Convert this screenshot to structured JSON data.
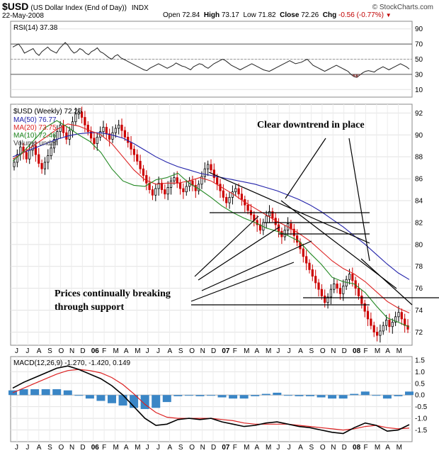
{
  "header": {
    "symbol": "$USD",
    "name": "(US Dollar Index (End of Day))",
    "exchange": "INDX",
    "date": "22-May-2008",
    "brand": "© StockCharts.com",
    "open_label": "Open",
    "open": "72.84",
    "high_label": "High",
    "high": "73.17",
    "low_label": "Low",
    "low": "71.82",
    "close_label": "Close",
    "close": "72.26",
    "chg_label": "Chg",
    "chg": "-0.56 (-0.77%)"
  },
  "colors": {
    "up": "#000000",
    "down": "#cc0000",
    "ma50": "#2222aa",
    "ma20": "#dd2222",
    "ma10": "#228822",
    "macd": "#000000",
    "signal": "#dd2222",
    "hist": "#3a86c6",
    "rsi": "#222222"
  },
  "chart_data": [
    {
      "type": "line",
      "panel": "rsi",
      "legend": "RSI(14) 37.38",
      "ylim": [
        0,
        100
      ],
      "y_ticks": [
        10,
        30,
        50,
        70,
        90
      ],
      "values": [
        66,
        68,
        70,
        65,
        58,
        60,
        62,
        64,
        58,
        55,
        60,
        63,
        66,
        62,
        60,
        58,
        64,
        68,
        72,
        68,
        62,
        58,
        60,
        64,
        62,
        58,
        56,
        60,
        62,
        65,
        60,
        58,
        55,
        52,
        50,
        54,
        56,
        52,
        50,
        48,
        46,
        44,
        42,
        40,
        38,
        36,
        35,
        38,
        40,
        42,
        44,
        42,
        40,
        38,
        40,
        42,
        45,
        43,
        41,
        40,
        38,
        36,
        40,
        42,
        44,
        43,
        40,
        38,
        41,
        44,
        46,
        48,
        50,
        48,
        45,
        42,
        40,
        38,
        36,
        38,
        40,
        42,
        44,
        42,
        40,
        38,
        36,
        35,
        34,
        36,
        38,
        40,
        42,
        44,
        46,
        48,
        46,
        44,
        45,
        46,
        48,
        50,
        46,
        42,
        40,
        38,
        36,
        34,
        36,
        38,
        40,
        42,
        40,
        38,
        36,
        34,
        30,
        27,
        26,
        29,
        32,
        34,
        35,
        34,
        33,
        36,
        38,
        40,
        38,
        36,
        38,
        40,
        42,
        44,
        42,
        40,
        37
      ]
    },
    {
      "type": "candlestick",
      "panel": "price",
      "title": "$USD (Weekly) 72.26",
      "legend": [
        "MA(50) 76.77",
        "MA(20) 73.75",
        "MA(10) 72.46",
        "Volume undef"
      ],
      "ylim": [
        70.8,
        92.8
      ],
      "y_ticks": [
        72,
        74,
        76,
        78,
        80,
        82,
        84,
        86,
        88,
        90,
        92
      ],
      "x_labels": [
        "J",
        "J",
        "A",
        "S",
        "O",
        "N",
        "D",
        "06",
        "F",
        "M",
        "A",
        "M",
        "J",
        "J",
        "A",
        "S",
        "O",
        "N",
        "D",
        "07",
        "F",
        "M",
        "A",
        "M",
        "J",
        "J",
        "A",
        "S",
        "O",
        "N",
        "D",
        "08",
        "F",
        "M",
        "A",
        "M"
      ],
      "closes": [
        87.5,
        88.2,
        88.9,
        88.4,
        87.8,
        88.6,
        89.0,
        88.2,
        87.4,
        86.9,
        87.5,
        88.1,
        88.8,
        89.6,
        90.3,
        90.9,
        90.2,
        89.6,
        90.4,
        91.2,
        91.9,
        92.1,
        91.6,
        90.9,
        90.3,
        89.7,
        89.2,
        89.8,
        90.3,
        90.7,
        90.1,
        89.6,
        90.2,
        90.6,
        90.9,
        90.4,
        89.8,
        89.3,
        88.7,
        88.2,
        87.6,
        86.9,
        86.3,
        85.6,
        85.0,
        84.5,
        85.1,
        85.6,
        85.0,
        84.6,
        85.2,
        85.8,
        86.1,
        85.6,
        85.1,
        84.8,
        85.3,
        85.8,
        85.4,
        84.9,
        85.5,
        86.2,
        86.9,
        87.3,
        86.8,
        86.1,
        85.5,
        84.9,
        84.3,
        83.8,
        84.3,
        84.8,
        85.1,
        84.6,
        84.1,
        83.6,
        83.1,
        82.7,
        82.2,
        81.8,
        81.3,
        82.0,
        82.6,
        83.0,
        82.4,
        81.8,
        81.2,
        80.7,
        81.3,
        81.9,
        81.4,
        80.8,
        80.2,
        79.6,
        78.9,
        78.3,
        77.7,
        77.1,
        76.5,
        75.9,
        75.3,
        74.7,
        75.2,
        75.9,
        76.4,
        76.0,
        75.5,
        76.2,
        76.8,
        77.3,
        76.7,
        76.0,
        75.3,
        74.6,
        73.9,
        73.2,
        72.6,
        72.0,
        71.7,
        72.1,
        72.6,
        73.1,
        72.5,
        72.9,
        73.4,
        73.8,
        73.2,
        72.6,
        72.26
      ],
      "ma50": [
        88.0,
        88.4,
        88.8,
        89.2,
        89.6,
        89.9,
        90.1,
        90.2,
        90.2,
        90.0,
        89.7,
        89.2,
        88.6,
        88.0,
        87.5,
        87.1,
        86.8,
        86.5,
        86.3,
        86.1,
        85.9,
        85.7,
        85.5,
        85.2,
        84.9,
        84.5,
        84.1,
        83.6,
        83.0,
        82.3,
        81.6,
        80.8,
        80.0,
        79.1,
        78.2,
        77.4,
        76.8
      ],
      "ma20": [
        87.8,
        88.4,
        89.1,
        89.8,
        90.5,
        91.0,
        90.8,
        90.4,
        90.0,
        89.2,
        88.0,
        86.8,
        85.9,
        85.5,
        85.6,
        85.6,
        85.8,
        86.1,
        85.8,
        85.2,
        84.6,
        83.9,
        83.3,
        82.7,
        82.1,
        81.6,
        81.0,
        80.3,
        79.4,
        78.5,
        77.8,
        77.3,
        76.6,
        75.7,
        74.8,
        74.2,
        73.75
      ],
      "ma10": [
        87.6,
        88.5,
        89.6,
        90.7,
        91.3,
        90.7,
        90.0,
        89.4,
        88.4,
        86.9,
        85.8,
        85.4,
        85.3,
        85.9,
        86.1,
        86.5,
        85.6,
        85.0,
        84.3,
        83.5,
        82.9,
        82.4,
        82.0,
        81.5,
        81.2,
        80.8,
        80.3,
        79.2,
        78.2,
        77.0,
        76.6,
        76.4,
        75.6,
        74.4,
        73.3,
        72.9,
        72.46
      ]
    },
    {
      "type": "line",
      "panel": "macd",
      "legend": "MACD(12,26,9) -1.270, -1.420, 0.149",
      "ylim": [
        -2.0,
        1.65
      ],
      "y_ticks": [
        -1.5,
        -1.0,
        -0.5,
        0.0,
        0.5,
        1.0,
        1.5
      ],
      "macd": [
        0.3,
        0.55,
        0.75,
        0.95,
        1.15,
        1.25,
        1.1,
        0.9,
        0.7,
        0.4,
        0.0,
        -0.5,
        -1.0,
        -1.3,
        -1.25,
        -1.05,
        -1.0,
        -1.05,
        -1.0,
        -1.15,
        -1.25,
        -1.35,
        -1.3,
        -1.2,
        -1.15,
        -1.25,
        -1.35,
        -1.4,
        -1.5,
        -1.6,
        -1.65,
        -1.4,
        -1.2,
        -1.3,
        -1.55,
        -1.5,
        -1.27
      ],
      "signal": [
        0.1,
        0.3,
        0.5,
        0.7,
        0.9,
        1.05,
        1.1,
        1.05,
        0.95,
        0.75,
        0.45,
        0.05,
        -0.4,
        -0.75,
        -0.95,
        -1.0,
        -1.0,
        -1.0,
        -1.0,
        -1.05,
        -1.1,
        -1.2,
        -1.25,
        -1.25,
        -1.25,
        -1.25,
        -1.3,
        -1.35,
        -1.4,
        -1.45,
        -1.5,
        -1.45,
        -1.35,
        -1.3,
        -1.4,
        -1.45,
        -1.42
      ],
      "hist": [
        0.2,
        0.25,
        0.25,
        0.25,
        0.25,
        0.2,
        0.0,
        -0.15,
        -0.25,
        -0.35,
        -0.45,
        -0.55,
        -0.6,
        -0.55,
        -0.3,
        -0.05,
        0.0,
        -0.05,
        0.0,
        -0.1,
        -0.15,
        -0.15,
        -0.05,
        0.05,
        0.1,
        0.0,
        -0.05,
        -0.05,
        -0.1,
        -0.15,
        -0.15,
        0.05,
        0.15,
        0.0,
        -0.15,
        -0.05,
        0.149
      ]
    }
  ],
  "annotations": {
    "downtrend": "Clear downtrend in place",
    "support_1": "Prices continually breaking",
    "support_2": "through support"
  }
}
